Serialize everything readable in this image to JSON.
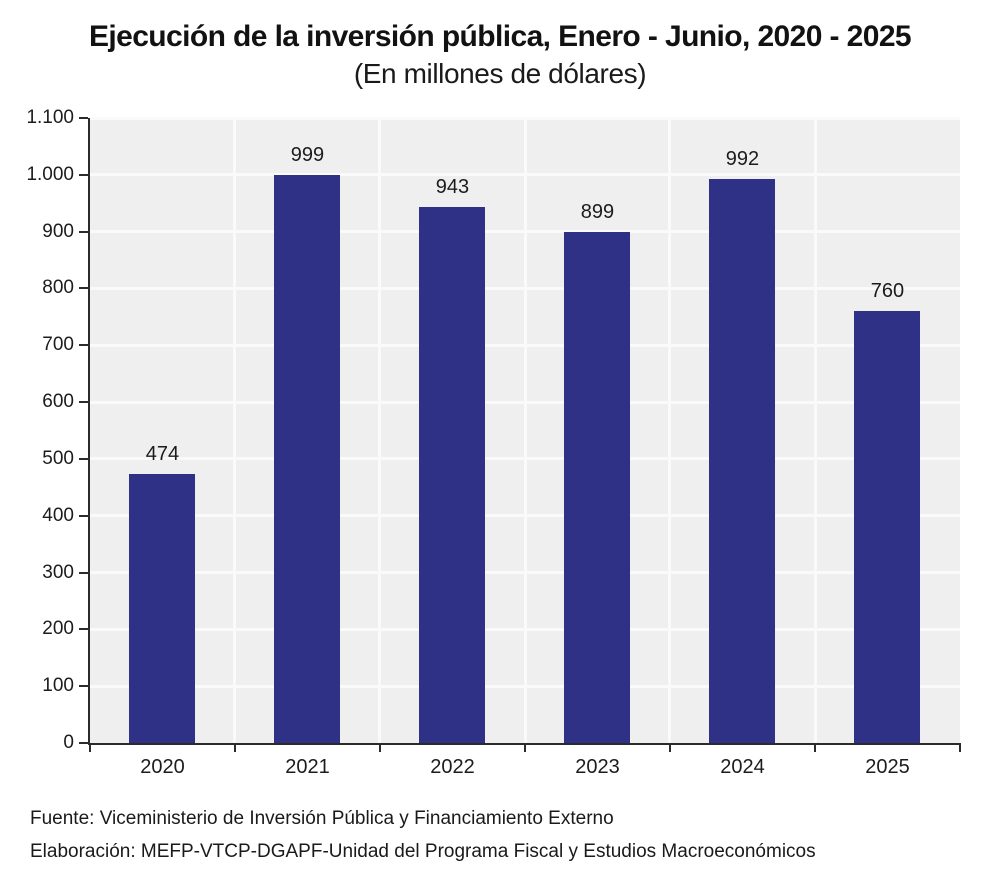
{
  "chart_data": {
    "type": "bar",
    "title": "Ejecución de la inversión pública, Enero - Junio, 2020 - 2025",
    "subtitle": "(En millones de dólares)",
    "categories": [
      "2020",
      "2021",
      "2022",
      "2023",
      "2024",
      "2025"
    ],
    "values": [
      474,
      999,
      943,
      899,
      992,
      760
    ],
    "value_labels": [
      "474",
      "999",
      "943",
      "899",
      "992",
      "760"
    ],
    "xlabel": "",
    "ylabel": "",
    "ylim": [
      0,
      1100
    ],
    "ytick_step": 100,
    "ytick_labels": [
      "0",
      "100",
      "200",
      "300",
      "400",
      "500",
      "600",
      "700",
      "800",
      "900",
      "1.000",
      "1.100"
    ],
    "grid": true,
    "legend": false,
    "colors": {
      "bar": "#2e3186",
      "plot_background": "#efefef",
      "gridline": "#fafafa",
      "axis": "#2b2b2b",
      "text": "#1c1c1c"
    }
  },
  "footer": {
    "source_line": "Fuente: Viceministerio de Inversión Pública y Financiamiento Externo",
    "elaboration_line": "Elaboración: MEFP-VTCP-DGAPF-Unidad del Programa Fiscal y Estudios Macroeconómicos"
  }
}
